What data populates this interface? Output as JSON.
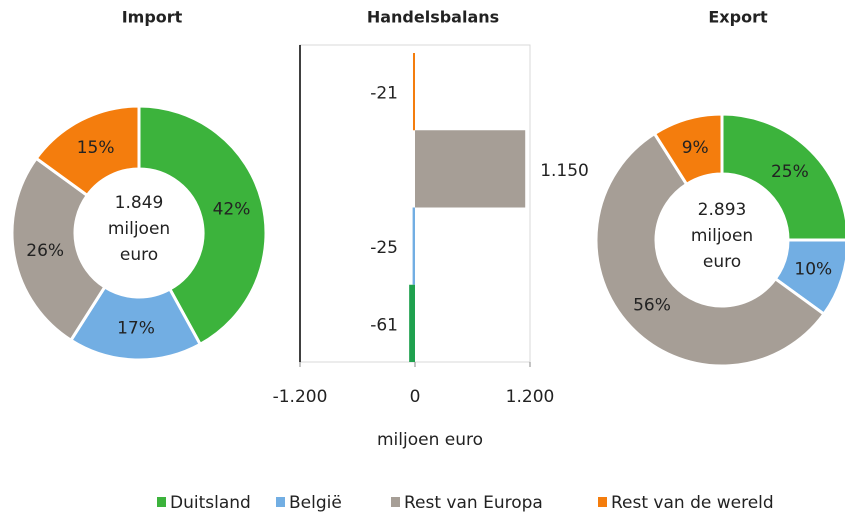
{
  "chart_data": [
    {
      "type": "donut",
      "title": "Import",
      "center_lines": [
        "1.849",
        "miljoen",
        "euro"
      ],
      "categories": [
        "Duitsland",
        "België",
        "Rest van Europa",
        "Rest van de wereld"
      ],
      "values": [
        42,
        17,
        26,
        15
      ],
      "value_labels": [
        "42%",
        "17%",
        "26%",
        "15%"
      ],
      "colors": [
        "#3cb33c",
        "#72aee3",
        "#a69e96",
        "#f47d0d"
      ]
    },
    {
      "type": "hbar",
      "title": "Handelsbalans",
      "xlabel": "miljoen euro",
      "categories": [
        null,
        null,
        null,
        null
      ],
      "values": [
        -21,
        1150,
        -25,
        -61
      ],
      "value_labels": [
        "-21",
        "1.150",
        "-25",
        "-61"
      ],
      "colors": [
        "#f47d0d",
        "#a69e96",
        "#72aee3",
        "#1fa14e"
      ],
      "xlim": [
        -1200,
        1200
      ],
      "xticks": [
        {
          "value": -1200,
          "label": "-1.200"
        },
        0,
        {
          "value": 1200,
          "label": "1.200"
        }
      ]
    },
    {
      "type": "donut",
      "title": "Export",
      "center_lines": [
        "2.893",
        "miljoen",
        "euro"
      ],
      "categories": [
        "Duitsland",
        "België",
        "Rest van Europa",
        "Rest van de wereld"
      ],
      "values": [
        25,
        10,
        56,
        9
      ],
      "value_labels": [
        "25%",
        "10%",
        "56%",
        "9%"
      ],
      "colors": [
        "#3cb33c",
        "#72aee3",
        "#a69e96",
        "#f47d0d"
      ]
    }
  ]
}
